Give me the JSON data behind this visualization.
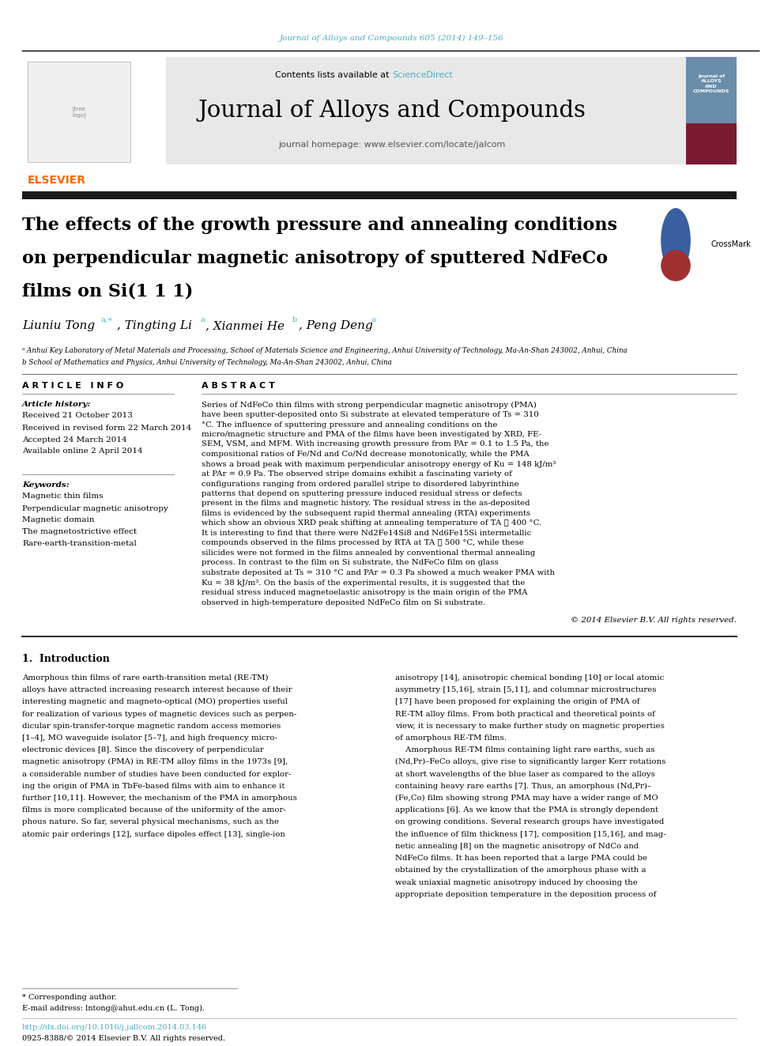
{
  "page_width": 9.92,
  "page_height": 13.23,
  "bg_color": "#ffffff",
  "journal_ref": "Journal of Alloys and Compounds 605 (2014) 149–156",
  "journal_ref_color": "#4AAEC2",
  "journal_name": "Journal of Alloys and Compounds",
  "contents_text": "Contents lists available at ",
  "sciencedirect_text": "ScienceDirect",
  "sciencedirect_color": "#4AAEC2",
  "homepage_text": "journal homepage: www.elsevier.com/locate/jalcom",
  "elsevier_color": "#FF6600",
  "title_lines": [
    "The effects of the growth pressure and annealing conditions",
    "on perpendicular magnetic anisotropy of sputtered NdFeCo",
    "films on Si(1 1 1)"
  ],
  "affil_a": "ᵃ Anhui Key Laboratory of Metal Materials and Processing, School of Materials Science and Engineering, Anhui University of Technology, Ma-An-Shan 243002, Anhui, China",
  "affil_b": "b School of Mathematics and Physics, Anhui University of Technology, Ma-An-Shan 243002, Anhui, China",
  "article_info_header": "A R T I C L E   I N F O",
  "abstract_header": "A B S T R A C T",
  "article_history_label": "Article history:",
  "received": "Received 21 October 2013",
  "revised": "Received in revised form 22 March 2014",
  "accepted": "Accepted 24 March 2014",
  "available": "Available online 2 April 2014",
  "keywords_label": "Keywords:",
  "keywords": [
    "Magnetic thin films",
    "Perpendicular magnetic anisotropy",
    "Magnetic domain",
    "The magnetostrictive effect",
    "Rare-earth-transition-metal"
  ],
  "abstract_text": "Series of NdFeCo thin films with strong perpendicular magnetic anisotropy (PMA) have been sputter-deposited onto Si substrate at elevated temperature of Ts = 310 °C. The influence of sputtering pressure and annealing conditions on the micro/magnetic structure and PMA of the films have been investigated by XRD, FE-SEM, VSM, and MFM. With increasing growth pressure from PAr = 0.1 to 1.5 Pa, the compositional ratios of Fe/Nd and Co/Nd decrease monotonically, while the PMA shows a broad peak with maximum perpendicular anisotropy energy of Ku = 148 kJ/m³ at PAr = 0.9 Pa. The observed stripe domains exhibit a fascinating variety of configurations ranging from ordered parallel stripe to disordered labyrinthine patterns that depend on sputtering pressure induced residual stress or defects present in the films and magnetic history. The residual stress in the as-deposited films is evidenced by the subsequent rapid thermal annealing (RTA) experiments which show an obvious XRD peak shifting at annealing temperature of TA ⩽ 400 °C. It is interesting to find that there were Nd2Fe14Si8 and Nd6Fe15Si intermetallic compounds observed in the films processed by RTA at TA ⩾ 500 °C, while these silicides were not formed in the films annealed by conventional thermal annealing process. In contrast to the film on Si substrate, the NdFeCo film on glass substrate deposited at Ts = 310 °C and PAr = 0.3 Pa showed a much weaker PMA with Ku = 38 kJ/m³. On the basis of the experimental results, it is suggested that the residual stress induced magnetoelastic anisotropy is the main origin of the PMA observed in high-temperature deposited NdFeCo film on Si substrate.",
  "copyright_text": "© 2014 Elsevier B.V. All rights reserved.",
  "section1_title": "1.  Introduction",
  "intro_col1_lines": [
    "Amorphous thin films of rare earth-transition metal (RE-TM)",
    "alloys have attracted increasing research interest because of their",
    "interesting magnetic and magneto-optical (MO) properties useful",
    "for realization of various types of magnetic devices such as perpen-",
    "dicular spin-transfer-torque magnetic random access memories",
    "[1–4], MO waveguide isolator [5–7], and high frequency micro-",
    "electronic devices [8]. Since the discovery of perpendicular",
    "magnetic anisotropy (PMA) in RE-TM alloy films in the 1973s [9],",
    "a considerable number of studies have been conducted for explor-",
    "ing the origin of PMA in TbFe-based films with aim to enhance it",
    "further [10,11]. However, the mechanism of the PMA in amorphous",
    "films is more complicated because of the uniformity of the amor-",
    "phous nature. So far, several physical mechanisms, such as the",
    "atomic pair orderings [12], surface dipoles effect [13], single-ion"
  ],
  "intro_col2_lines": [
    "anisotropy [14], anisotropic chemical bonding [10] or local atomic",
    "asymmetry [15,16], strain [5,11], and columnar microstructures",
    "[17] have been proposed for explaining the origin of PMA of",
    "RE-TM alloy films. From both practical and theoretical points of",
    "view, it is necessary to make further study on magnetic properties",
    "of amorphous RE-TM films.",
    "    Amorphous RE-TM films containing light rare earths, such as",
    "(Nd,Pr)–FeCo alloys, give rise to significantly larger Kerr rotations",
    "at short wavelengths of the blue laser as compared to the alloys",
    "containing heavy rare earths [7]. Thus, an amorphous (Nd,Pr)–",
    "(Fe,Co) film showing strong PMA may have a wider range of MO",
    "applications [6]. As we know that the PMA is strongly dependent",
    "on growing conditions. Several research groups have investigated",
    "the influence of film thickness [17], composition [15,16], and mag-",
    "netic annealing [8] on the magnetic anisotropy of NdCo and",
    "NdFeCo films. It has been reported that a large PMA could be",
    "obtained by the crystallization of the amorphous phase with a",
    "weak uniaxial magnetic anisotropy induced by choosing the",
    "appropriate deposition temperature in the deposition process of"
  ],
  "corresponding_author_note": "* Corresponding author.",
  "email_note": "E-mail address: lntong@ahut.edu.cn (L. Tong).",
  "doi_text": "http://dx.doi.org/10.1016/j.jallcom.2014.03.146",
  "issn_text": "0925-8388/© 2014 Elsevier B.V. All rights reserved.",
  "header_bg_color": "#e8e8e8",
  "black_bar_color": "#1a1a1a"
}
